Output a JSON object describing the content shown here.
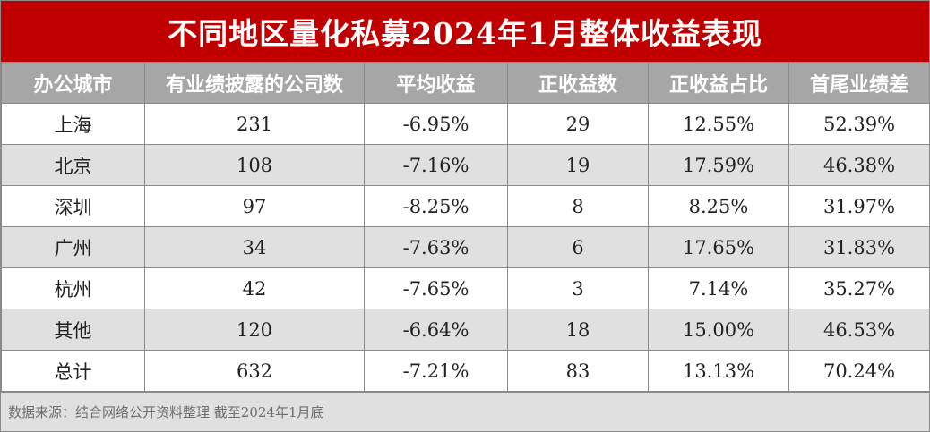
{
  "title": "不同地区量化私募2024年1月整体收益表现",
  "columns": [
    "办公城市",
    "有业绩披露的公司数",
    "平均收益",
    "正收益数",
    "正收益占比",
    "首尾业绩差"
  ],
  "rows": [
    [
      "上海",
      "231",
      "-6.95%",
      "29",
      "12.55%",
      "52.39%"
    ],
    [
      "北京",
      "108",
      "-7.16%",
      "19",
      "17.59%",
      "46.38%"
    ],
    [
      "深圳",
      "97",
      "-8.25%",
      "8",
      "8.25%",
      "31.97%"
    ],
    [
      "广州",
      "34",
      "-7.63%",
      "6",
      "17.65%",
      "31.83%"
    ],
    [
      "杭州",
      "42",
      "-7.65%",
      "3",
      "7.14%",
      "35.27%"
    ],
    [
      "其他",
      "120",
      "-6.64%",
      "18",
      "15.00%",
      "46.53%"
    ],
    [
      "总计",
      "632",
      "-7.21%",
      "83",
      "13.13%",
      "70.24%"
    ]
  ],
  "footer": "数据来源：结合网络公开资料整理  截至2024年1月底",
  "colors": {
    "title_bg": "#c00000",
    "header_bg": "#a6a6a6",
    "alt_row_bg": "#e0e0e0",
    "footer_bg": "#e0e0e0"
  }
}
